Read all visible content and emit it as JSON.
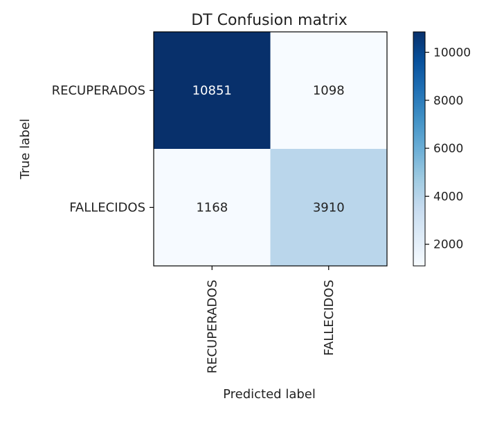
{
  "chart_data": {
    "type": "heatmap",
    "title": "DT Confusion matrix",
    "xlabel": "Predicted label",
    "ylabel": "True label",
    "row_labels": [
      "RECUPERADOS",
      "FALLECIDOS"
    ],
    "col_labels": [
      "RECUPERADOS",
      "FALLECIDOS"
    ],
    "values": [
      [
        10851,
        1098
      ],
      [
        1168,
        3910
      ]
    ],
    "colormap": "Blues",
    "color_low": "#f7fbff",
    "color_high": "#08306b",
    "text_color_dark": "#222222",
    "text_color_light": "#ffffff",
    "colorbar": {
      "ticks": [
        2000,
        4000,
        6000,
        8000,
        10000
      ],
      "range": [
        1098,
        10851
      ]
    }
  }
}
